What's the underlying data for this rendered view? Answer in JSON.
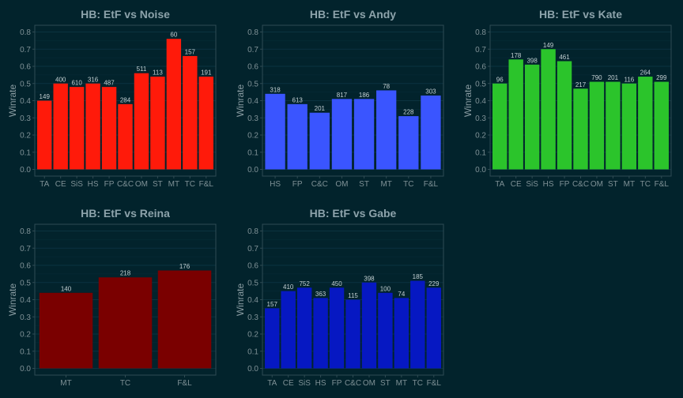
{
  "colors": {
    "background": "#02232c",
    "panel_border": "#2f4b53",
    "grid": "#0b3340",
    "text": "#8da3ab"
  },
  "chart_data": [
    {
      "type": "bar",
      "title": "HB: EtF vs Noise",
      "ylabel": "Winrate",
      "ylim": [
        0,
        0.8
      ],
      "yticks": [
        "0.0",
        "0.1",
        "0.2",
        "0.3",
        "0.4",
        "0.5",
        "0.6",
        "0.7",
        "0.8"
      ],
      "color": "#ff1a0a",
      "categories": [
        "TA",
        "CE",
        "SiS",
        "HS",
        "FP",
        "C&C",
        "OM",
        "ST",
        "MT",
        "TC",
        "F&L"
      ],
      "values": [
        0.4,
        0.5,
        0.48,
        0.5,
        0.48,
        0.38,
        0.56,
        0.54,
        0.76,
        0.66,
        0.54
      ],
      "labels": [
        "149",
        "400",
        "610",
        "316",
        "487",
        "284",
        "511",
        "113",
        "60",
        "157",
        "191"
      ]
    },
    {
      "type": "bar",
      "title": "HB: EtF vs Andy",
      "ylabel": "Winrate",
      "ylim": [
        0,
        0.8
      ],
      "yticks": [
        "0.0",
        "0.1",
        "0.2",
        "0.3",
        "0.4",
        "0.5",
        "0.6",
        "0.7",
        "0.8"
      ],
      "color": "#3a55ff",
      "categories": [
        "HS",
        "FP",
        "C&C",
        "OM",
        "ST",
        "MT",
        "TC",
        "F&L"
      ],
      "values": [
        0.44,
        0.38,
        0.33,
        0.41,
        0.41,
        0.46,
        0.31,
        0.43
      ],
      "labels": [
        "318",
        "613",
        "201",
        "817",
        "186",
        "78",
        "228",
        "303"
      ]
    },
    {
      "type": "bar",
      "title": "HB: EtF vs Kate",
      "ylabel": "Winrate",
      "ylim": [
        0,
        0.8
      ],
      "yticks": [
        "0.0",
        "0.1",
        "0.2",
        "0.3",
        "0.4",
        "0.5",
        "0.6",
        "0.7",
        "0.8"
      ],
      "color": "#2bc42b",
      "categories": [
        "TA",
        "CE",
        "SiS",
        "HS",
        "FP",
        "C&C",
        "OM",
        "ST",
        "MT",
        "TC",
        "F&L"
      ],
      "values": [
        0.5,
        0.64,
        0.61,
        0.7,
        0.63,
        0.47,
        0.51,
        0.51,
        0.5,
        0.54,
        0.51
      ],
      "labels": [
        "96",
        "178",
        "398",
        "149",
        "461",
        "217",
        "790",
        "201",
        "116",
        "264",
        "299"
      ]
    },
    {
      "type": "bar",
      "title": "HB: EtF vs Reina",
      "ylabel": "Winrate",
      "ylim": [
        0,
        0.8
      ],
      "yticks": [
        "0.0",
        "0.1",
        "0.2",
        "0.3",
        "0.4",
        "0.5",
        "0.6",
        "0.7",
        "0.8"
      ],
      "color": "#7a0000",
      "categories": [
        "MT",
        "TC",
        "F&L"
      ],
      "values": [
        0.44,
        0.53,
        0.57
      ],
      "labels": [
        "140",
        "218",
        "176"
      ]
    },
    {
      "type": "bar",
      "title": "HB: EtF vs Gabe",
      "ylabel": "Winrate",
      "ylim": [
        0,
        0.8
      ],
      "yticks": [
        "0.0",
        "0.1",
        "0.2",
        "0.3",
        "0.4",
        "0.5",
        "0.6",
        "0.7",
        "0.8"
      ],
      "color": "#0618c2",
      "categories": [
        "TA",
        "CE",
        "SiS",
        "HS",
        "FP",
        "C&C",
        "OM",
        "ST",
        "MT",
        "TC",
        "F&L"
      ],
      "values": [
        0.35,
        0.45,
        0.47,
        0.41,
        0.47,
        0.4,
        0.5,
        0.44,
        0.41,
        0.51,
        0.47
      ],
      "labels": [
        "157",
        "410",
        "752",
        "363",
        "450",
        "115",
        "398",
        "100",
        "74",
        "185",
        "229"
      ]
    }
  ]
}
